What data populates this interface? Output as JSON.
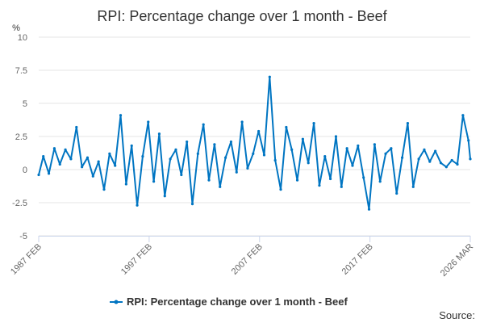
{
  "chart_data": {
    "type": "line",
    "title": "RPI: Percentage change over 1 month - Beef",
    "ylabel": "%",
    "xlabel": "",
    "ylim": [
      -5,
      10
    ],
    "yticks": [
      10,
      7.5,
      5,
      2.5,
      0,
      -2.5,
      -5
    ],
    "ytick_labels": [
      "10",
      "7.5",
      "5",
      "2.5",
      "0",
      "-2.5",
      "-5"
    ],
    "xlim": [
      1987.083,
      2026.167
    ],
    "xticks": [
      {
        "label": "1987 FEB",
        "value": 1987.083
      },
      {
        "label": "1997 FEB",
        "value": 1997.083
      },
      {
        "label": "2007 FEB",
        "value": 2007.083
      },
      {
        "label": "2017 FEB",
        "value": 2017.083
      },
      {
        "label": "2026 MAR",
        "value": 2026.167
      }
    ],
    "grid": true,
    "legend_position": "bottom",
    "color": "#0075c2",
    "series": [
      {
        "name": "RPI: Percentage change over 1 month - Beef",
        "x": [
          1987.083,
          1987.5,
          1988.0,
          1988.5,
          1989.0,
          1989.5,
          1990.0,
          1990.5,
          1991.0,
          1991.5,
          1992.0,
          1992.5,
          1993.0,
          1993.5,
          1994.0,
          1994.5,
          1995.0,
          1995.5,
          1996.0,
          1996.5,
          1997.0,
          1997.5,
          1998.0,
          1998.5,
          1999.0,
          1999.5,
          2000.0,
          2000.5,
          2001.0,
          2001.5,
          2002.0,
          2002.5,
          2003.0,
          2003.5,
          2004.0,
          2004.5,
          2005.0,
          2005.5,
          2006.0,
          2006.5,
          2007.0,
          2007.5,
          2008.0,
          2008.5,
          2009.0,
          2009.5,
          2010.0,
          2010.5,
          2011.0,
          2011.5,
          2012.0,
          2012.5,
          2013.0,
          2013.5,
          2014.0,
          2014.5,
          2015.0,
          2015.5,
          2016.0,
          2016.5,
          2017.0,
          2017.5,
          2018.0,
          2018.5,
          2019.0,
          2019.5,
          2020.0,
          2020.5,
          2021.0,
          2021.5,
          2022.0,
          2022.5,
          2023.0,
          2023.5,
          2024.0,
          2024.5,
          2025.0,
          2025.5,
          2026.0,
          2026.167
        ],
        "values": [
          -0.4,
          1.0,
          -0.3,
          1.6,
          0.4,
          1.5,
          0.8,
          3.2,
          0.2,
          0.9,
          -0.5,
          0.6,
          -1.5,
          1.2,
          0.3,
          4.1,
          -1.1,
          1.8,
          -2.7,
          1.0,
          3.6,
          -0.9,
          2.7,
          -2.0,
          0.8,
          1.5,
          -0.4,
          2.1,
          -2.6,
          1.2,
          3.4,
          -0.8,
          1.9,
          -1.3,
          0.9,
          2.1,
          -0.2,
          3.6,
          0.1,
          1.2,
          2.9,
          1.1,
          7.0,
          0.7,
          -1.5,
          3.2,
          1.5,
          -0.8,
          2.3,
          0.5,
          3.5,
          -1.2,
          1.0,
          -0.7,
          2.5,
          -1.3,
          1.6,
          0.3,
          1.8,
          -0.6,
          -3.0,
          1.9,
          -0.9,
          1.2,
          1.6,
          -1.8,
          0.9,
          3.5,
          -1.3,
          0.8,
          1.5,
          0.6,
          1.4,
          0.5,
          0.2,
          0.7,
          0.4,
          4.1,
          2.2,
          0.8
        ]
      }
    ]
  },
  "legend": {
    "label": "RPI: Percentage change over 1 month - Beef"
  },
  "source": {
    "label": "Source:"
  }
}
